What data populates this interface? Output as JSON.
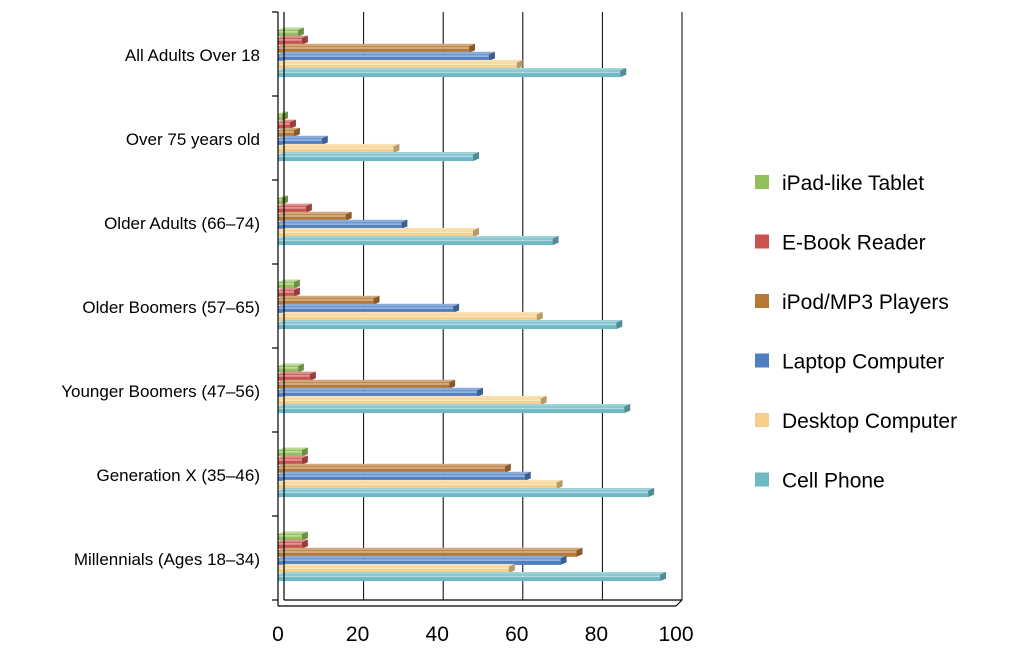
{
  "chart_data": {
    "type": "bar",
    "orientation": "horizontal",
    "title": "",
    "xlabel": "",
    "ylabel": "",
    "xlim": [
      0,
      100
    ],
    "xticks": [
      "0",
      "20",
      "40",
      "60",
      "80",
      "100"
    ],
    "grid": "vertical",
    "legend_position": "right",
    "categories": [
      "All Adults Over 18",
      "Over 75 years old",
      "Older Adults (66–74)",
      "Older Boomers (57–65)",
      "Younger Boomers (47–56)",
      "Generation X (35–46)",
      "Millennials (Ages 18–34)"
    ],
    "series": [
      {
        "name": "iPad-like Tablet",
        "color": "#92c05a",
        "values": [
          5,
          1,
          1,
          4,
          5,
          6,
          6
        ]
      },
      {
        "name": "E-Book Reader",
        "color": "#c9534f",
        "values": [
          6,
          3,
          7,
          4,
          8,
          6,
          6
        ]
      },
      {
        "name": "iPod/MP3 Players",
        "color": "#b77936",
        "values": [
          48,
          4,
          17,
          24,
          43,
          57,
          75
        ]
      },
      {
        "name": "Laptop Computer",
        "color": "#4e7fc4",
        "values": [
          53,
          11,
          31,
          44,
          50,
          62,
          71
        ]
      },
      {
        "name": "Desktop Computer",
        "color": "#f4d08c",
        "values": [
          60,
          29,
          49,
          65,
          66,
          70,
          58
        ]
      },
      {
        "name": "Cell Phone",
        "color": "#6fb9c6",
        "values": [
          86,
          49,
          69,
          85,
          87,
          93,
          96
        ]
      }
    ]
  }
}
